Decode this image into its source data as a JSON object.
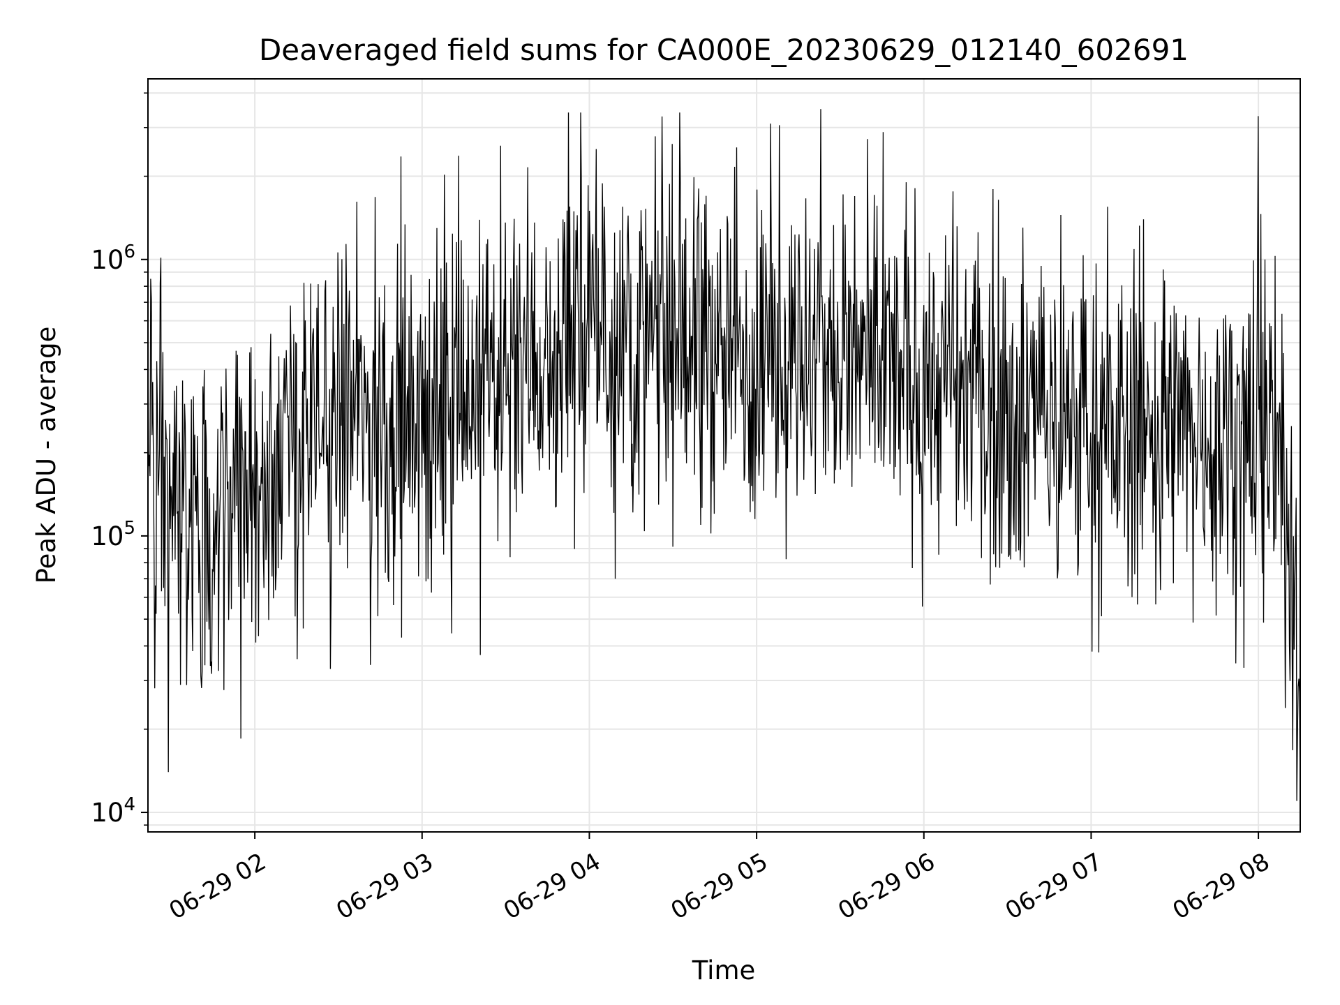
{
  "chart_data": {
    "type": "line",
    "title": "Deaveraged field sums for CA000E_20230629_012140_602691",
    "xlabel": "Time",
    "ylabel": "Peak ADU - average",
    "x_range": [
      "2023-06-29 01:21:40",
      "2023-06-29 08:15:00"
    ],
    "y_scale": "log",
    "ylim": [
      8500,
      4500000
    ],
    "x_ticks": [
      {
        "value": "2023-06-29 02:00",
        "label": "06-29 02"
      },
      {
        "value": "2023-06-29 03:00",
        "label": "06-29 03"
      },
      {
        "value": "2023-06-29 04:00",
        "label": "06-29 04"
      },
      {
        "value": "2023-06-29 05:00",
        "label": "06-29 05"
      },
      {
        "value": "2023-06-29 06:00",
        "label": "06-29 06"
      },
      {
        "value": "2023-06-29 07:00",
        "label": "06-29 07"
      },
      {
        "value": "2023-06-29 08:00",
        "label": "06-29 08"
      }
    ],
    "y_ticks": [
      {
        "value": 10000,
        "base": "10",
        "exp": "4"
      },
      {
        "value": 100000,
        "base": "10",
        "exp": "5"
      },
      {
        "value": 1000000,
        "base": "10",
        "exp": "6"
      }
    ],
    "grid": true,
    "line_color": "#000000",
    "series_trend": {
      "x": [
        "2023-06-29 01:22",
        "2023-06-29 01:40",
        "2023-06-29 02:00",
        "2023-06-29 02:30",
        "2023-06-29 03:00",
        "2023-06-29 03:30",
        "2023-06-29 04:00",
        "2023-06-29 04:30",
        "2023-06-29 05:00",
        "2023-06-29 05:30",
        "2023-06-29 06:00",
        "2023-06-29 06:30",
        "2023-06-29 07:00",
        "2023-06-29 07:30",
        "2023-06-29 08:00",
        "2023-06-29 08:08",
        "2023-06-29 08:15"
      ],
      "y": [
        180000,
        110000,
        170000,
        280000,
        260000,
        420000,
        520000,
        480000,
        470000,
        430000,
        360000,
        300000,
        240000,
        240000,
        260000,
        180000,
        35000
      ]
    },
    "notable_points": [
      {
        "x": "2023-06-29 04:00",
        "y": 1500000
      },
      {
        "x": "2023-06-29 05:05",
        "y": 3100000
      },
      {
        "x": "2023-06-29 05:23",
        "y": 3500000
      },
      {
        "x": "2023-06-29 08:00",
        "y": 3300000
      },
      {
        "x": "2023-06-29 01:29",
        "y": 14000
      },
      {
        "x": "2023-06-29 01:55",
        "y": 18500
      },
      {
        "x": "2023-06-29 08:15",
        "y": 11000
      }
    ]
  }
}
